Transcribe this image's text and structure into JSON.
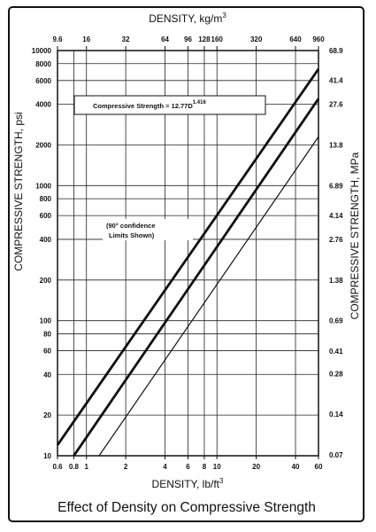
{
  "chart_data": {
    "type": "line",
    "title": "Effect of Density on Compressive Strength",
    "xlabel": "DENSITY, lb/ft",
    "xlabel_sup": "3",
    "x2label": "DENSITY, kg/m",
    "x2label_sup": "3",
    "ylabel": "COMPRESSIVE STRENGTH, psi",
    "y2label": "COMPRESSIVE STRENGTH, MPa",
    "x_scale": "log",
    "y_scale": "log",
    "xlim": [
      0.6,
      60
    ],
    "ylim": [
      10,
      10000
    ],
    "grid": true,
    "x_ticks": [
      0.6,
      0.8,
      1,
      2,
      4,
      6,
      8,
      10,
      20,
      40,
      60
    ],
    "x_tick_labels": [
      "0.6",
      "0.8",
      "1",
      "2",
      "4",
      "6",
      "8",
      "10",
      "20",
      "40",
      "60"
    ],
    "y_ticks": [
      10,
      20,
      40,
      60,
      80,
      100,
      200,
      400,
      600,
      800,
      1000,
      2000,
      4000,
      6000,
      8000,
      10000
    ],
    "y_tick_labels": [
      "10",
      "20",
      "40",
      "60",
      "80",
      "100",
      "200",
      "400",
      "600",
      "800",
      "1000",
      "2000",
      "4000",
      "6000",
      "8000",
      "10000"
    ],
    "x2_ticks": [
      9.6,
      16,
      32,
      64,
      96,
      128,
      160,
      320,
      640,
      960
    ],
    "x2_tick_labels": [
      "9.6",
      "16",
      "32",
      "64",
      "96",
      "128",
      "160",
      "320",
      "640",
      "960"
    ],
    "y2_ticks": [
      0.07,
      0.14,
      0.28,
      0.41,
      0.69,
      1.38,
      2.76,
      4.14,
      6.89,
      13.8,
      27.6,
      41.4,
      68.9
    ],
    "y2_tick_labels": [
      "0.07",
      "0.14",
      "0.28",
      "0.41",
      "0.69",
      "1.38",
      "2.76",
      "4.14",
      "6.89",
      "13.8",
      "27.6",
      "41.4",
      "68.9"
    ],
    "series": [
      {
        "line": "upper-limit",
        "weight": "heavy",
        "x": [
          0.6,
          60
        ],
        "y": [
          12,
          7300
        ]
      },
      {
        "line": "mean",
        "weight": "heavy",
        "x": [
          0.8,
          60
        ],
        "y": [
          10,
          4400
        ]
      },
      {
        "line": "lower-limit",
        "weight": "light",
        "x": [
          1.25,
          60
        ],
        "y": [
          10,
          2300
        ]
      }
    ],
    "annotations": [
      {
        "id": "equation",
        "text": "Compressive Strength = 12.77D",
        "superscript": "1.416",
        "boxed": true
      },
      {
        "id": "confidence",
        "lines": [
          "(90° confidence",
          "Limits Shown)"
        ]
      }
    ]
  }
}
